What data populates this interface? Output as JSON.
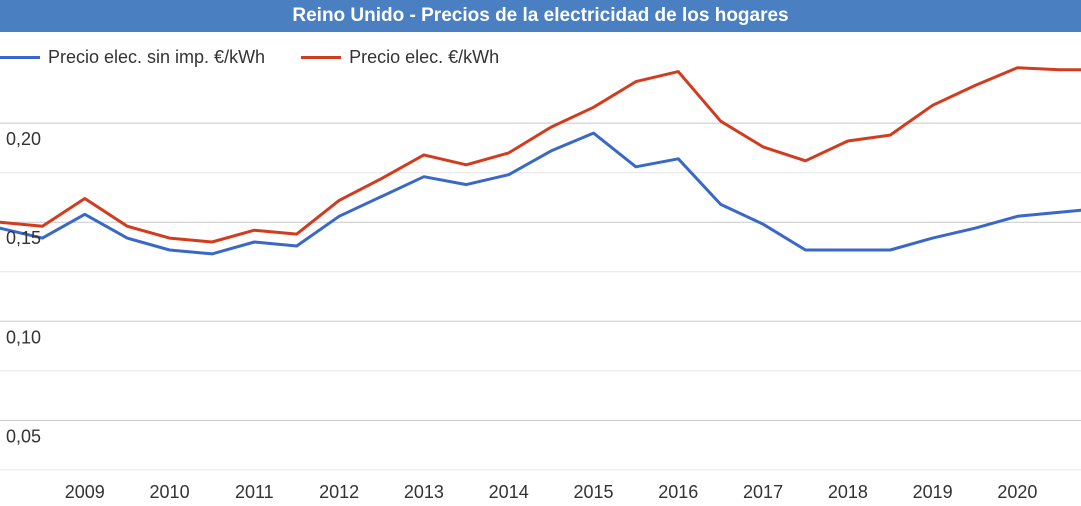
{
  "chart_data": {
    "type": "line",
    "title": "Reino Unido - Precios de la electricidad de los hogares",
    "xlabel": "",
    "ylabel": "",
    "x_tick_labels": [
      "2009",
      "2010",
      "2011",
      "2012",
      "2013",
      "2014",
      "2015",
      "2016",
      "2017",
      "2018",
      "2019",
      "2020"
    ],
    "y_tick_labels": [
      "0,05",
      "0,10",
      "0,15",
      "0,20"
    ],
    "ylim": [
      0.03,
      0.245
    ],
    "xlim": [
      2008.0,
      2020.75
    ],
    "grid": true,
    "legend_position": "top-left",
    "series": [
      {
        "name": "Precio elec. sin imp. €/kWh",
        "color": "#3a68c6",
        "x": [
          2008.0,
          2008.5,
          2009.0,
          2009.5,
          2010.0,
          2010.5,
          2011.0,
          2011.5,
          2012.0,
          2012.5,
          2013.0,
          2013.5,
          2014.0,
          2014.5,
          2015.0,
          2015.5,
          2016.0,
          2016.5,
          2017.0,
          2017.5,
          2018.0,
          2018.5,
          2019.0,
          2019.5,
          2020.0,
          2020.5,
          2020.75
        ],
        "values": [
          0.147,
          0.142,
          0.154,
          0.142,
          0.136,
          0.134,
          0.14,
          0.138,
          0.153,
          0.163,
          0.173,
          0.169,
          0.174,
          0.186,
          0.195,
          0.178,
          0.182,
          0.159,
          0.149,
          0.136,
          0.136,
          0.136,
          0.142,
          0.147,
          0.153,
          0.155,
          0.156
        ]
      },
      {
        "name": "Precio elec. €/kWh",
        "color": "#d23c1e",
        "x": [
          2008.0,
          2008.5,
          2009.0,
          2009.5,
          2010.0,
          2010.5,
          2011.0,
          2011.5,
          2012.0,
          2012.5,
          2013.0,
          2013.5,
          2014.0,
          2014.5,
          2015.0,
          2015.5,
          2016.0,
          2016.5,
          2017.0,
          2017.5,
          2018.0,
          2018.5,
          2019.0,
          2019.5,
          2020.0,
          2020.5,
          2020.75
        ],
        "values": [
          0.15,
          0.148,
          0.162,
          0.148,
          0.142,
          0.14,
          0.146,
          0.144,
          0.161,
          0.172,
          0.184,
          0.179,
          0.185,
          0.198,
          0.208,
          0.221,
          0.226,
          0.201,
          0.188,
          0.181,
          0.191,
          0.194,
          0.209,
          0.219,
          0.228,
          0.227,
          0.227
        ]
      }
    ]
  }
}
